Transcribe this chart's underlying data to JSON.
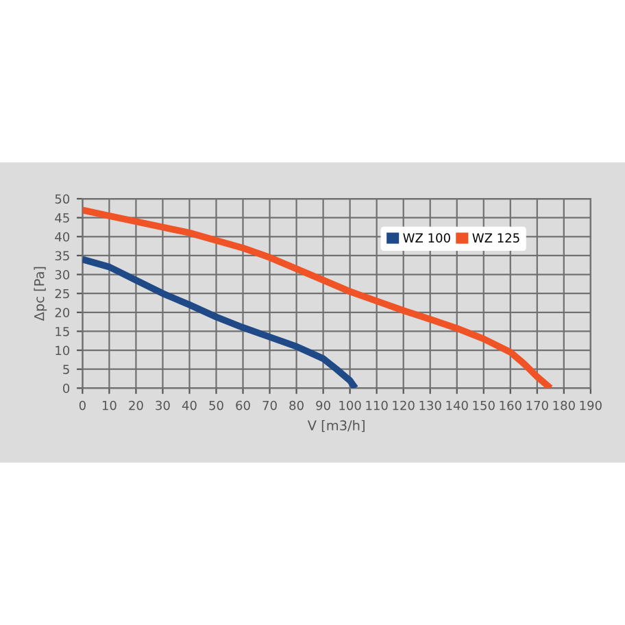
{
  "chart_data": {
    "type": "line",
    "xlabel": "V [m3/h]",
    "ylabel": "Δpc [Pa]",
    "series": [
      {
        "name": "WZ 100",
        "color": "#1f4a87",
        "x": [
          0,
          10,
          20,
          30,
          40,
          50,
          60,
          70,
          80,
          90,
          95,
          100,
          102
        ],
        "values": [
          34,
          32,
          28.5,
          25,
          22,
          18.8,
          16,
          13.5,
          11,
          7.8,
          5,
          2,
          0
        ]
      },
      {
        "name": "WZ 125",
        "color": "#ef5326",
        "x": [
          0,
          10,
          20,
          30,
          40,
          50,
          60,
          70,
          80,
          90,
          100,
          110,
          120,
          130,
          140,
          150,
          160,
          165,
          170,
          175
        ],
        "values": [
          47,
          45.5,
          44,
          42.5,
          41,
          39,
          37,
          34.5,
          31.5,
          28.5,
          25.5,
          23,
          20.5,
          18.2,
          15.8,
          13,
          9.5,
          6.5,
          3,
          0
        ]
      }
    ],
    "xlim": [
      0,
      190
    ],
    "ylim": [
      0,
      50
    ],
    "xticks": [
      0,
      10,
      20,
      30,
      40,
      50,
      60,
      70,
      80,
      90,
      100,
      110,
      120,
      130,
      140,
      150,
      160,
      170,
      180,
      190
    ],
    "yticks": [
      0,
      5,
      10,
      15,
      20,
      25,
      30,
      35,
      40,
      45,
      50
    ],
    "grid": true,
    "legend": "top right",
    "marker": "none",
    "line_style": "solid"
  }
}
